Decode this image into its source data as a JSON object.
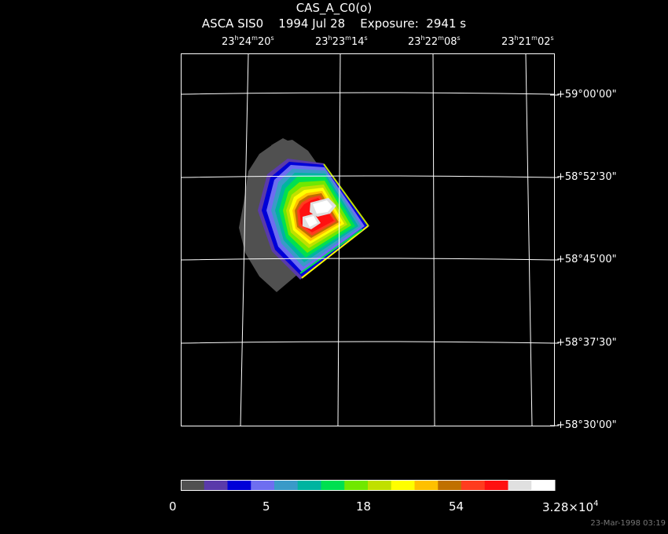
{
  "header": {
    "title": "CAS_A_C0(o)",
    "instrument": "ASCA SIS0",
    "date": "1994 Jul 28",
    "exposure": "Exposure:  2941 s"
  },
  "ra_axis": [
    {
      "h": "23",
      "m": "24",
      "s": "20"
    },
    {
      "h": "23",
      "m": "23",
      "s": "14"
    },
    {
      "h": "23",
      "m": "22",
      "s": "08"
    },
    {
      "h": "23",
      "m": "21",
      "s": "02"
    }
  ],
  "dec_axis": [
    "+59°00'00\"",
    "+58°52'30\"",
    "+58°45'00\"",
    "+58°37'30\"",
    "+58°30'00\""
  ],
  "colorbar": {
    "colors": [
      "#505050",
      "#5a3aaa",
      "#0000d8",
      "#6e6ef0",
      "#3a9ac8",
      "#00b4a0",
      "#00e050",
      "#70e800",
      "#c0e000",
      "#ffff00",
      "#ffc000",
      "#c07000",
      "#ff3c1e",
      "#ff1010",
      "#e0e0e0",
      "#ffffff"
    ],
    "labels": [
      "0",
      "5",
      "18",
      "54"
    ],
    "max_label": {
      "base": "3.28×10",
      "exp": "4"
    }
  },
  "footer": "23-Mar-1998 03:19"
}
